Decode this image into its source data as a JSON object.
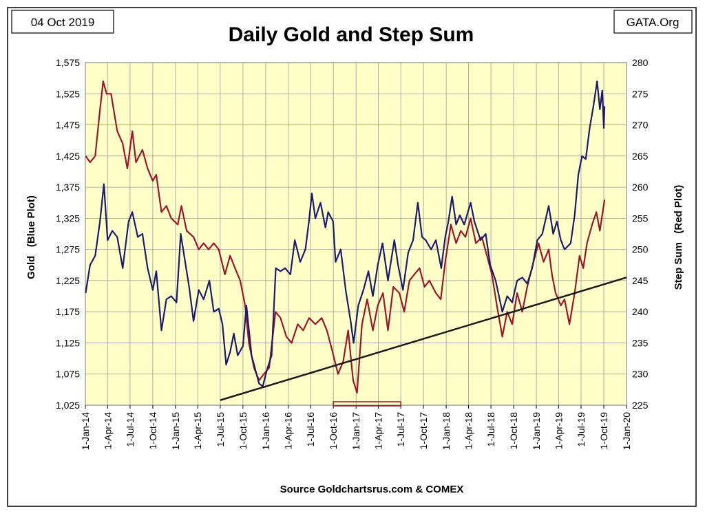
{
  "chart_data": {
    "type": "line",
    "title": "Daily Gold and Step Sum",
    "date_label": "04 Oct 2019",
    "site_label": "GATA.Org",
    "source": "Source Goldchartsrus.com & COMEX",
    "y_left_label": "Gold   (Blue Plot)",
    "y_right_label": "Step Sum   (Red Plot)",
    "colors": {
      "gold": "#1a1a6e",
      "step_sum": "#a01428",
      "trend": "#1a1a1a",
      "plot_bg": "#ffffc8",
      "grid": "#9a9a9a"
    },
    "x_range": [
      "2014-01-01",
      "2020-01-01"
    ],
    "x_ticks": [
      "1-Jan-14",
      "1-Apr-14",
      "1-Jul-14",
      "1-Oct-14",
      "1-Jan-15",
      "1-Apr-15",
      "1-Jul-15",
      "1-Oct-15",
      "1-Jan-16",
      "1-Apr-16",
      "1-Jul-16",
      "1-Oct-16",
      "1-Jan-17",
      "1-Apr-17",
      "1-Jul-17",
      "1-Oct-17",
      "1-Jan-18",
      "1-Apr-18",
      "1-Jul-18",
      "1-Oct-18",
      "1-Jan-19",
      "1-Apr-19",
      "1-Jul-19",
      "1-Oct-19",
      "1-Jan-20"
    ],
    "y_left_range": [
      1025,
      1575
    ],
    "y_left_ticks": [
      "1,025",
      "1,075",
      "1,125",
      "1,175",
      "1,225",
      "1,275",
      "1,325",
      "1,375",
      "1,425",
      "1,475",
      "1,525",
      "1,575"
    ],
    "y_right_range": [
      225,
      280
    ],
    "y_right_ticks": [
      "225",
      "230",
      "235",
      "240",
      "245",
      "250",
      "255",
      "260",
      "265",
      "270",
      "275",
      "280"
    ],
    "grid": true,
    "series": [
      {
        "name": "Gold",
        "axis": "left",
        "points": [
          [
            "2014-01-02",
            1205
          ],
          [
            "2014-01-20",
            1250
          ],
          [
            "2014-02-10",
            1265
          ],
          [
            "2014-03-01",
            1320
          ],
          [
            "2014-03-17",
            1380
          ],
          [
            "2014-04-01",
            1290
          ],
          [
            "2014-04-20",
            1305
          ],
          [
            "2014-05-10",
            1295
          ],
          [
            "2014-06-01",
            1245
          ],
          [
            "2014-06-25",
            1320
          ],
          [
            "2014-07-10",
            1335
          ],
          [
            "2014-08-01",
            1295
          ],
          [
            "2014-08-20",
            1300
          ],
          [
            "2014-09-10",
            1245
          ],
          [
            "2014-10-01",
            1210
          ],
          [
            "2014-10-15",
            1240
          ],
          [
            "2014-11-05",
            1145
          ],
          [
            "2014-11-25",
            1195
          ],
          [
            "2014-12-15",
            1200
          ],
          [
            "2015-01-05",
            1190
          ],
          [
            "2015-01-22",
            1300
          ],
          [
            "2015-02-05",
            1265
          ],
          [
            "2015-02-25",
            1215
          ],
          [
            "2015-03-15",
            1160
          ],
          [
            "2015-04-05",
            1210
          ],
          [
            "2015-04-25",
            1195
          ],
          [
            "2015-05-18",
            1225
          ],
          [
            "2015-06-05",
            1175
          ],
          [
            "2015-06-25",
            1180
          ],
          [
            "2015-07-10",
            1155
          ],
          [
            "2015-07-25",
            1090
          ],
          [
            "2015-08-10",
            1110
          ],
          [
            "2015-08-25",
            1140
          ],
          [
            "2015-09-10",
            1105
          ],
          [
            "2015-10-01",
            1120
          ],
          [
            "2015-10-15",
            1185
          ],
          [
            "2015-11-05",
            1105
          ],
          [
            "2015-11-25",
            1075
          ],
          [
            "2015-12-05",
            1060
          ],
          [
            "2015-12-20",
            1055
          ],
          [
            "2016-01-05",
            1080
          ],
          [
            "2016-01-25",
            1105
          ],
          [
            "2016-02-11",
            1245
          ],
          [
            "2016-03-01",
            1240
          ],
          [
            "2016-03-20",
            1245
          ],
          [
            "2016-04-10",
            1235
          ],
          [
            "2016-04-28",
            1290
          ],
          [
            "2016-05-20",
            1255
          ],
          [
            "2016-06-10",
            1275
          ],
          [
            "2016-06-24",
            1320
          ],
          [
            "2016-07-06",
            1365
          ],
          [
            "2016-07-20",
            1325
          ],
          [
            "2016-08-10",
            1350
          ],
          [
            "2016-08-30",
            1310
          ],
          [
            "2016-09-10",
            1335
          ],
          [
            "2016-09-30",
            1320
          ],
          [
            "2016-10-10",
            1255
          ],
          [
            "2016-10-31",
            1275
          ],
          [
            "2016-11-20",
            1210
          ],
          [
            "2016-12-10",
            1160
          ],
          [
            "2016-12-22",
            1125
          ],
          [
            "2017-01-10",
            1185
          ],
          [
            "2017-01-31",
            1210
          ],
          [
            "2017-02-20",
            1240
          ],
          [
            "2017-03-10",
            1200
          ],
          [
            "2017-03-30",
            1250
          ],
          [
            "2017-04-18",
            1285
          ],
          [
            "2017-05-10",
            1225
          ],
          [
            "2017-06-05",
            1290
          ],
          [
            "2017-06-20",
            1250
          ],
          [
            "2017-07-10",
            1210
          ],
          [
            "2017-07-31",
            1270
          ],
          [
            "2017-08-20",
            1290
          ],
          [
            "2017-09-08",
            1350
          ],
          [
            "2017-09-25",
            1295
          ],
          [
            "2017-10-10",
            1290
          ],
          [
            "2017-11-01",
            1275
          ],
          [
            "2017-11-20",
            1290
          ],
          [
            "2017-12-12",
            1245
          ],
          [
            "2017-12-28",
            1295
          ],
          [
            "2018-01-10",
            1320
          ],
          [
            "2018-01-25",
            1360
          ],
          [
            "2018-02-10",
            1315
          ],
          [
            "2018-02-25",
            1330
          ],
          [
            "2018-03-15",
            1315
          ],
          [
            "2018-04-10",
            1350
          ],
          [
            "2018-04-25",
            1320
          ],
          [
            "2018-05-20",
            1290
          ],
          [
            "2018-06-10",
            1300
          ],
          [
            "2018-06-28",
            1250
          ],
          [
            "2018-07-20",
            1225
          ],
          [
            "2018-08-16",
            1175
          ],
          [
            "2018-09-05",
            1200
          ],
          [
            "2018-09-25",
            1190
          ],
          [
            "2018-10-15",
            1225
          ],
          [
            "2018-11-05",
            1230
          ],
          [
            "2018-11-25",
            1220
          ],
          [
            "2018-12-15",
            1245
          ],
          [
            "2019-01-05",
            1290
          ],
          [
            "2019-01-25",
            1300
          ],
          [
            "2019-02-20",
            1345
          ],
          [
            "2019-03-10",
            1300
          ],
          [
            "2019-03-25",
            1320
          ],
          [
            "2019-04-10",
            1290
          ],
          [
            "2019-04-25",
            1275
          ],
          [
            "2019-05-20",
            1285
          ],
          [
            "2019-06-05",
            1330
          ],
          [
            "2019-06-20",
            1395
          ],
          [
            "2019-07-05",
            1425
          ],
          [
            "2019-07-20",
            1420
          ],
          [
            "2019-08-05",
            1470
          ],
          [
            "2019-08-20",
            1505
          ],
          [
            "2019-09-04",
            1545
          ],
          [
            "2019-09-15",
            1500
          ],
          [
            "2019-09-25",
            1530
          ],
          [
            "2019-10-01",
            1470
          ],
          [
            "2019-10-04",
            1505
          ]
        ]
      },
      {
        "name": "Step Sum",
        "axis": "right",
        "points": [
          [
            "2014-01-02",
            265
          ],
          [
            "2014-01-20",
            264
          ],
          [
            "2014-02-10",
            265
          ],
          [
            "2014-02-28",
            272
          ],
          [
            "2014-03-14",
            277
          ],
          [
            "2014-03-28",
            275
          ],
          [
            "2014-04-15",
            275
          ],
          [
            "2014-05-10",
            269
          ],
          [
            "2014-06-01",
            267
          ],
          [
            "2014-06-20",
            263
          ],
          [
            "2014-07-10",
            269
          ],
          [
            "2014-07-25",
            264
          ],
          [
            "2014-08-20",
            266
          ],
          [
            "2014-09-10",
            263
          ],
          [
            "2014-10-01",
            261
          ],
          [
            "2014-10-15",
            262
          ],
          [
            "2014-11-05",
            256
          ],
          [
            "2014-11-25",
            257
          ],
          [
            "2014-12-15",
            255
          ],
          [
            "2015-01-10",
            254
          ],
          [
            "2015-01-25",
            257
          ],
          [
            "2015-02-15",
            253
          ],
          [
            "2015-03-15",
            252
          ],
          [
            "2015-04-05",
            250
          ],
          [
            "2015-04-25",
            251
          ],
          [
            "2015-05-15",
            250
          ],
          [
            "2015-06-05",
            251
          ],
          [
            "2015-06-25",
            250
          ],
          [
            "2015-07-20",
            246
          ],
          [
            "2015-08-10",
            249
          ],
          [
            "2015-08-30",
            247
          ],
          [
            "2015-09-20",
            245
          ],
          [
            "2015-10-10",
            241
          ],
          [
            "2015-10-25",
            235
          ],
          [
            "2015-11-15",
            231
          ],
          [
            "2015-12-05",
            229
          ],
          [
            "2015-12-25",
            230
          ],
          [
            "2016-01-15",
            231
          ],
          [
            "2016-02-10",
            240
          ],
          [
            "2016-03-01",
            239
          ],
          [
            "2016-03-25",
            236
          ],
          [
            "2016-04-15",
            235
          ],
          [
            "2016-05-10",
            238
          ],
          [
            "2016-06-01",
            237
          ],
          [
            "2016-06-25",
            239
          ],
          [
            "2016-07-20",
            238
          ],
          [
            "2016-08-15",
            239
          ],
          [
            "2016-09-05",
            237
          ],
          [
            "2016-09-25",
            234
          ],
          [
            "2016-10-20",
            230
          ],
          [
            "2016-11-10",
            232
          ],
          [
            "2016-11-30",
            237
          ],
          [
            "2016-12-20",
            229
          ],
          [
            "2017-01-05",
            227
          ],
          [
            "2017-01-25",
            238
          ],
          [
            "2017-02-15",
            242
          ],
          [
            "2017-03-10",
            237
          ],
          [
            "2017-03-30",
            241
          ],
          [
            "2017-04-20",
            243
          ],
          [
            "2017-05-10",
            237
          ],
          [
            "2017-06-01",
            244
          ],
          [
            "2017-06-25",
            243
          ],
          [
            "2017-07-15",
            240
          ],
          [
            "2017-08-05",
            245
          ],
          [
            "2017-08-25",
            246
          ],
          [
            "2017-09-15",
            247
          ],
          [
            "2017-10-05",
            244
          ],
          [
            "2017-10-25",
            245
          ],
          [
            "2017-11-20",
            243
          ],
          [
            "2017-12-10",
            242
          ],
          [
            "2017-12-28",
            248
          ],
          [
            "2018-01-20",
            254
          ],
          [
            "2018-02-10",
            251
          ],
          [
            "2018-03-01",
            253
          ],
          [
            "2018-03-20",
            252
          ],
          [
            "2018-04-10",
            255
          ],
          [
            "2018-05-01",
            251
          ],
          [
            "2018-05-25",
            252
          ],
          [
            "2018-06-15",
            249
          ],
          [
            "2018-07-05",
            246
          ],
          [
            "2018-07-25",
            241
          ],
          [
            "2018-08-16",
            236
          ],
          [
            "2018-09-05",
            240
          ],
          [
            "2018-09-25",
            238
          ],
          [
            "2018-10-15",
            243
          ],
          [
            "2018-11-05",
            240
          ],
          [
            "2018-11-25",
            244
          ],
          [
            "2018-12-20",
            248
          ],
          [
            "2019-01-10",
            251
          ],
          [
            "2019-01-30",
            248
          ],
          [
            "2019-02-20",
            250
          ],
          [
            "2019-03-05",
            246
          ],
          [
            "2019-03-20",
            243
          ],
          [
            "2019-04-10",
            241
          ],
          [
            "2019-04-25",
            242
          ],
          [
            "2019-05-15",
            238
          ],
          [
            "2019-06-05",
            243
          ],
          [
            "2019-06-25",
            249
          ],
          [
            "2019-07-10",
            247
          ],
          [
            "2019-07-25",
            251
          ],
          [
            "2019-08-15",
            254
          ],
          [
            "2019-09-01",
            256
          ],
          [
            "2019-09-15",
            253
          ],
          [
            "2019-10-04",
            258
          ]
        ]
      }
    ],
    "trend_line": {
      "start": [
        "2015-07-01",
        1033
      ],
      "end": [
        "2020-01-01",
        1230
      ]
    },
    "highlight_box": {
      "x_start": "2016-10-01",
      "x_end": "2017-07-01"
    }
  }
}
